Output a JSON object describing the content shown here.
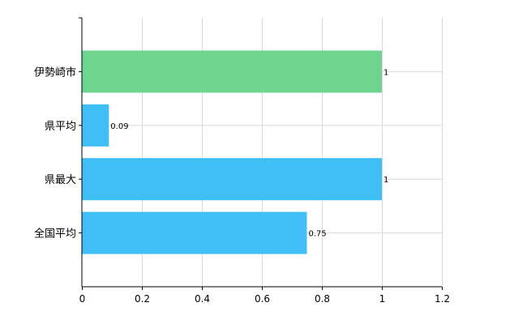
{
  "chart_data": {
    "type": "bar",
    "orientation": "horizontal",
    "categories": [
      "伊勢崎市",
      "県平均",
      "県最大",
      "全国平均"
    ],
    "values": [
      1,
      0.09,
      1,
      0.75
    ],
    "value_labels": [
      "1",
      "0.09",
      "1",
      "0.75"
    ],
    "bar_colors": [
      "#6dd58e",
      "#3fbff5",
      "#3fbff5",
      "#3fbff5"
    ],
    "xlim": [
      0,
      1.2
    ],
    "xticks": [
      0,
      0.2,
      0.4,
      0.6,
      0.8,
      1,
      1.2
    ],
    "xtick_labels": [
      "0",
      "0.2",
      "0.4",
      "0.6",
      "0.8",
      "1",
      "1.2"
    ],
    "grid": true,
    "title": "",
    "xlabel": "",
    "ylabel": ""
  }
}
